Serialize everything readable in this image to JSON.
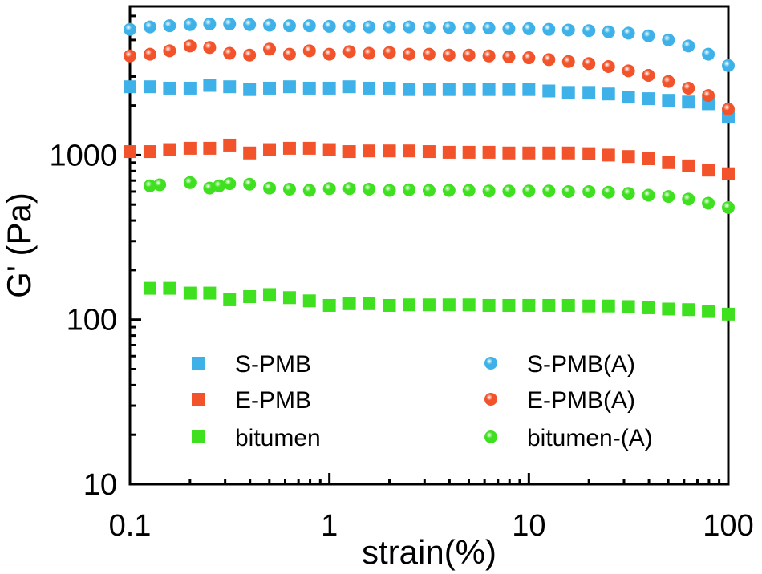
{
  "chart_data": {
    "type": "scatter",
    "title": "",
    "xlabel": "strain(%)",
    "ylabel": "G' (Pa)",
    "x_scale": "log",
    "y_scale": "log",
    "xlim": [
      0.1,
      100
    ],
    "ylim": [
      10,
      8000
    ],
    "xticks": [
      0.1,
      1,
      10,
      100
    ],
    "xtick_labels": [
      "0.1",
      "1",
      "10",
      "100"
    ],
    "yticks": [
      10,
      100,
      1000
    ],
    "ytick_labels": [
      "10",
      "100",
      "1000"
    ],
    "grid": false,
    "legend_position": "bottom",
    "series": [
      {
        "name": "S-PMB",
        "marker": "square",
        "color": "#3EB2E8",
        "x": [
          0.1,
          0.126,
          0.158,
          0.2,
          0.251,
          0.316,
          0.398,
          0.501,
          0.631,
          0.794,
          1,
          1.26,
          1.58,
          2,
          2.51,
          3.16,
          3.98,
          5.01,
          6.31,
          7.94,
          10,
          12.6,
          15.8,
          20,
          25.1,
          31.6,
          39.8,
          50.1,
          63.1,
          79.4,
          100
        ],
        "y": [
          2600,
          2600,
          2550,
          2550,
          2650,
          2600,
          2500,
          2550,
          2600,
          2550,
          2550,
          2600,
          2550,
          2550,
          2500,
          2500,
          2500,
          2500,
          2500,
          2500,
          2500,
          2450,
          2400,
          2400,
          2350,
          2250,
          2200,
          2150,
          2100,
          2050,
          1700
        ]
      },
      {
        "name": "E-PMB",
        "marker": "square",
        "color": "#F2532A",
        "x": [
          0.1,
          0.126,
          0.158,
          0.2,
          0.251,
          0.316,
          0.398,
          0.501,
          0.631,
          0.794,
          1,
          1.26,
          1.58,
          2,
          2.51,
          3.16,
          3.98,
          5.01,
          6.31,
          7.94,
          10,
          12.6,
          15.8,
          20,
          25.1,
          31.6,
          39.8,
          50.1,
          63.1,
          79.4,
          100
        ],
        "y": [
          1050,
          1050,
          1080,
          1100,
          1100,
          1150,
          1030,
          1080,
          1100,
          1100,
          1080,
          1050,
          1060,
          1060,
          1060,
          1050,
          1040,
          1040,
          1040,
          1030,
          1030,
          1030,
          1030,
          1020,
          1000,
          980,
          950,
          900,
          860,
          810,
          770
        ]
      },
      {
        "name": "bitumen",
        "marker": "square",
        "color": "#3FE01F",
        "x": [
          0.126,
          0.158,
          0.2,
          0.251,
          0.316,
          0.398,
          0.501,
          0.631,
          0.794,
          1,
          1.26,
          1.58,
          2,
          2.51,
          3.16,
          3.98,
          5.01,
          6.31,
          7.94,
          10,
          12.6,
          15.8,
          20,
          25.1,
          31.6,
          39.8,
          50.1,
          63.1,
          79.4,
          100
        ],
        "y": [
          155,
          155,
          145,
          145,
          132,
          138,
          142,
          136,
          130,
          122,
          125,
          125,
          122,
          123,
          123,
          123,
          123,
          122,
          122,
          122,
          122,
          122,
          121,
          121,
          120,
          118,
          116,
          115,
          112,
          108
        ]
      },
      {
        "name": "S-PMB(A)",
        "marker": "circle",
        "color": "#3EB2E8",
        "x": [
          0.1,
          0.126,
          0.158,
          0.2,
          0.251,
          0.316,
          0.398,
          0.501,
          0.631,
          0.794,
          1,
          1.26,
          1.58,
          2,
          2.51,
          3.16,
          3.98,
          5.01,
          6.31,
          7.94,
          10,
          12.6,
          15.8,
          20,
          25.1,
          31.6,
          39.8,
          50.1,
          63.1,
          79.4,
          100
        ],
        "y": [
          5800,
          6000,
          6100,
          6200,
          6250,
          6250,
          6200,
          6150,
          6100,
          6100,
          6050,
          6050,
          6000,
          6000,
          6000,
          5950,
          5950,
          5900,
          5900,
          5850,
          5850,
          5800,
          5750,
          5700,
          5600,
          5500,
          5300,
          5000,
          4600,
          4100,
          3500
        ]
      },
      {
        "name": "E-PMB(A)",
        "marker": "circle",
        "color": "#F2532A",
        "x": [
          0.1,
          0.126,
          0.158,
          0.2,
          0.251,
          0.316,
          0.398,
          0.501,
          0.631,
          0.794,
          1,
          1.26,
          1.58,
          2,
          2.51,
          3.16,
          3.98,
          5.01,
          6.31,
          7.94,
          10,
          12.6,
          15.8,
          20,
          25.1,
          31.6,
          39.8,
          50.1,
          63.1,
          79.4,
          100
        ],
        "y": [
          4000,
          4100,
          4300,
          4600,
          4500,
          4150,
          4050,
          4400,
          4100,
          4300,
          4100,
          4250,
          4150,
          4200,
          4100,
          4100,
          4050,
          4050,
          4000,
          3950,
          3900,
          3800,
          3700,
          3600,
          3450,
          3250,
          3050,
          2800,
          2550,
          2300,
          1900
        ]
      },
      {
        "name": "bitumen-(A)",
        "marker": "circle",
        "color": "#3FE01F",
        "x": [
          0.126,
          0.141,
          0.2,
          0.251,
          0.28,
          0.316,
          0.398,
          0.501,
          0.631,
          0.794,
          1,
          1.26,
          1.58,
          2,
          2.51,
          3.16,
          3.98,
          5.01,
          6.31,
          7.94,
          10,
          12.6,
          15.8,
          20,
          25.1,
          31.6,
          39.8,
          50.1,
          63.1,
          79.4,
          100
        ],
        "y": [
          650,
          660,
          680,
          630,
          650,
          670,
          665,
          630,
          620,
          610,
          625,
          625,
          620,
          610,
          615,
          610,
          610,
          610,
          605,
          605,
          605,
          605,
          600,
          600,
          595,
          585,
          570,
          560,
          540,
          510,
          480
        ]
      }
    ]
  }
}
